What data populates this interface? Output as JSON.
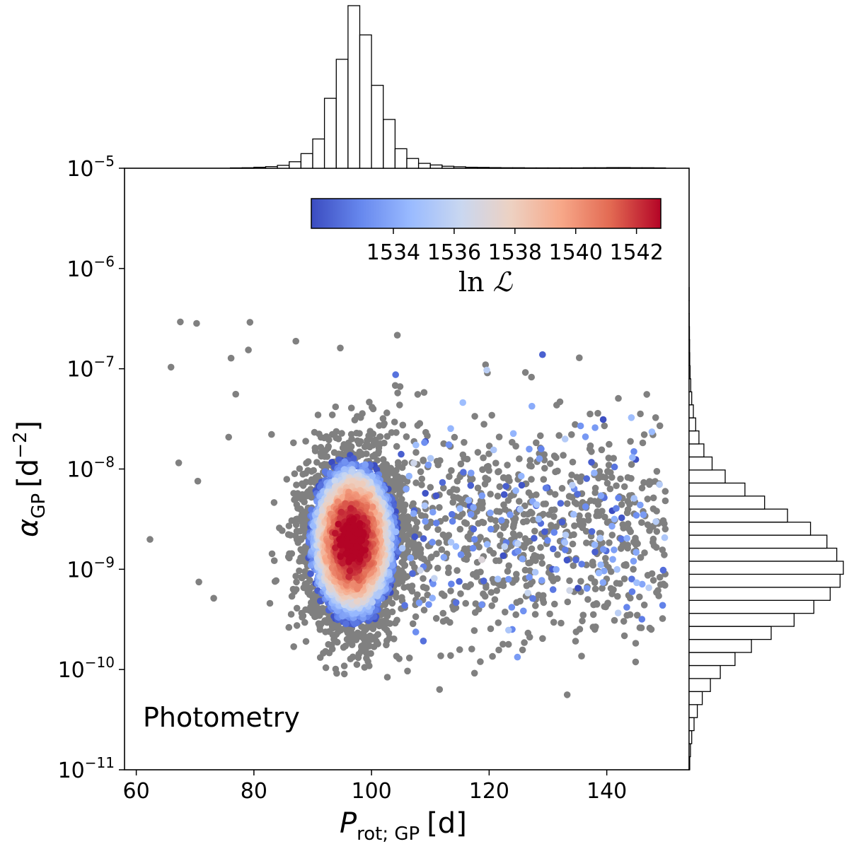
{
  "chart_data": {
    "type": "scatter",
    "annotation": "Photometry",
    "x_axis": {
      "label_main": "P",
      "label_sub": "rot; GP",
      "label_unit": "[d]",
      "range": [
        58,
        154
      ],
      "ticks": [
        60,
        80,
        100,
        120,
        140
      ],
      "tick_labels": [
        "60",
        "80",
        "100",
        "120",
        "140"
      ]
    },
    "y_axis": {
      "label_main": "α",
      "label_sub": "GP",
      "label_unit_open": "[d",
      "label_unit_sup": "−2",
      "label_unit_close": "]",
      "scale": "log",
      "range_log10": [
        -11,
        -5
      ],
      "ticks_log10": [
        -11,
        -10,
        -9,
        -8,
        -7,
        -6,
        -5
      ],
      "tick_base": "10",
      "tick_exponents": [
        "−11",
        "−10",
        "−9",
        "−8",
        "−7",
        "−6",
        "−5"
      ]
    },
    "colorbar": {
      "label_main": "ln",
      "label_script": "ℒ",
      "range": [
        1531.3,
        1542.8
      ],
      "ticks": [
        1534,
        1536,
        1538,
        1540,
        1542
      ],
      "tick_labels": [
        "1534",
        "1536",
        "1538",
        "1540",
        "1542"
      ],
      "cmap": [
        "#3b4cc0",
        "#6788ee",
        "#9abbff",
        "#c9d7f0",
        "#edd1c2",
        "#f7a889",
        "#e26952",
        "#b40426"
      ]
    },
    "points_color_below_range": "#808080",
    "top_histogram": {
      "bin_edges": [
        60,
        62,
        64,
        66,
        68,
        70,
        72,
        74,
        76,
        78,
        80,
        82,
        84,
        86,
        88,
        90,
        92,
        94,
        96,
        98,
        100,
        102,
        104,
        106,
        108,
        110,
        112,
        114,
        116,
        118,
        120,
        122,
        124,
        126,
        128,
        130,
        132,
        134,
        136,
        138,
        140,
        142,
        144,
        146,
        148,
        150
      ],
      "densities": [
        0,
        0,
        0,
        0,
        0,
        0,
        0,
        0,
        0.0002,
        0.0003,
        0.0006,
        0.001,
        0.0018,
        0.004,
        0.009,
        0.018,
        0.043,
        0.067,
        0.1,
        0.082,
        0.051,
        0.03,
        0.012,
        0.006,
        0.003,
        0.002,
        0.0012,
        0.0009,
        0.0006,
        0.0005,
        0.0004,
        0.0003,
        0.0003,
        0.0002,
        0.0002,
        0.0002,
        0.0002,
        0.0002,
        0.0003,
        0.0003,
        0.0004,
        0.0004,
        0.0003,
        0.0003,
        0.0002
      ]
    },
    "right_histogram": {
      "log10_bin_edges": [
        -11.0,
        -10.87,
        -10.74,
        -10.61,
        -10.48,
        -10.35,
        -10.22,
        -10.09,
        -9.96,
        -9.83,
        -9.7,
        -9.57,
        -9.44,
        -9.31,
        -9.18,
        -9.05,
        -8.92,
        -8.79,
        -8.66,
        -8.53,
        -8.4,
        -8.27,
        -8.14,
        -8.01,
        -7.88,
        -7.75,
        -7.62,
        -7.49,
        -7.36,
        -7.23,
        -7.1,
        -6.97,
        -6.84,
        -6.71,
        -6.58,
        -6.45,
        -6.32,
        -6.19
      ],
      "densities": [
        0.002,
        0.004,
        0.008,
        0.015,
        0.025,
        0.04,
        0.065,
        0.095,
        0.14,
        0.19,
        0.25,
        0.32,
        0.38,
        0.43,
        0.46,
        0.47,
        0.45,
        0.42,
        0.37,
        0.3,
        0.23,
        0.17,
        0.11,
        0.07,
        0.045,
        0.03,
        0.02,
        0.013,
        0.008,
        0.005,
        0.003,
        0.002,
        0.0015,
        0.001,
        0.0005,
        0.0003,
        0.0002
      ]
    }
  }
}
